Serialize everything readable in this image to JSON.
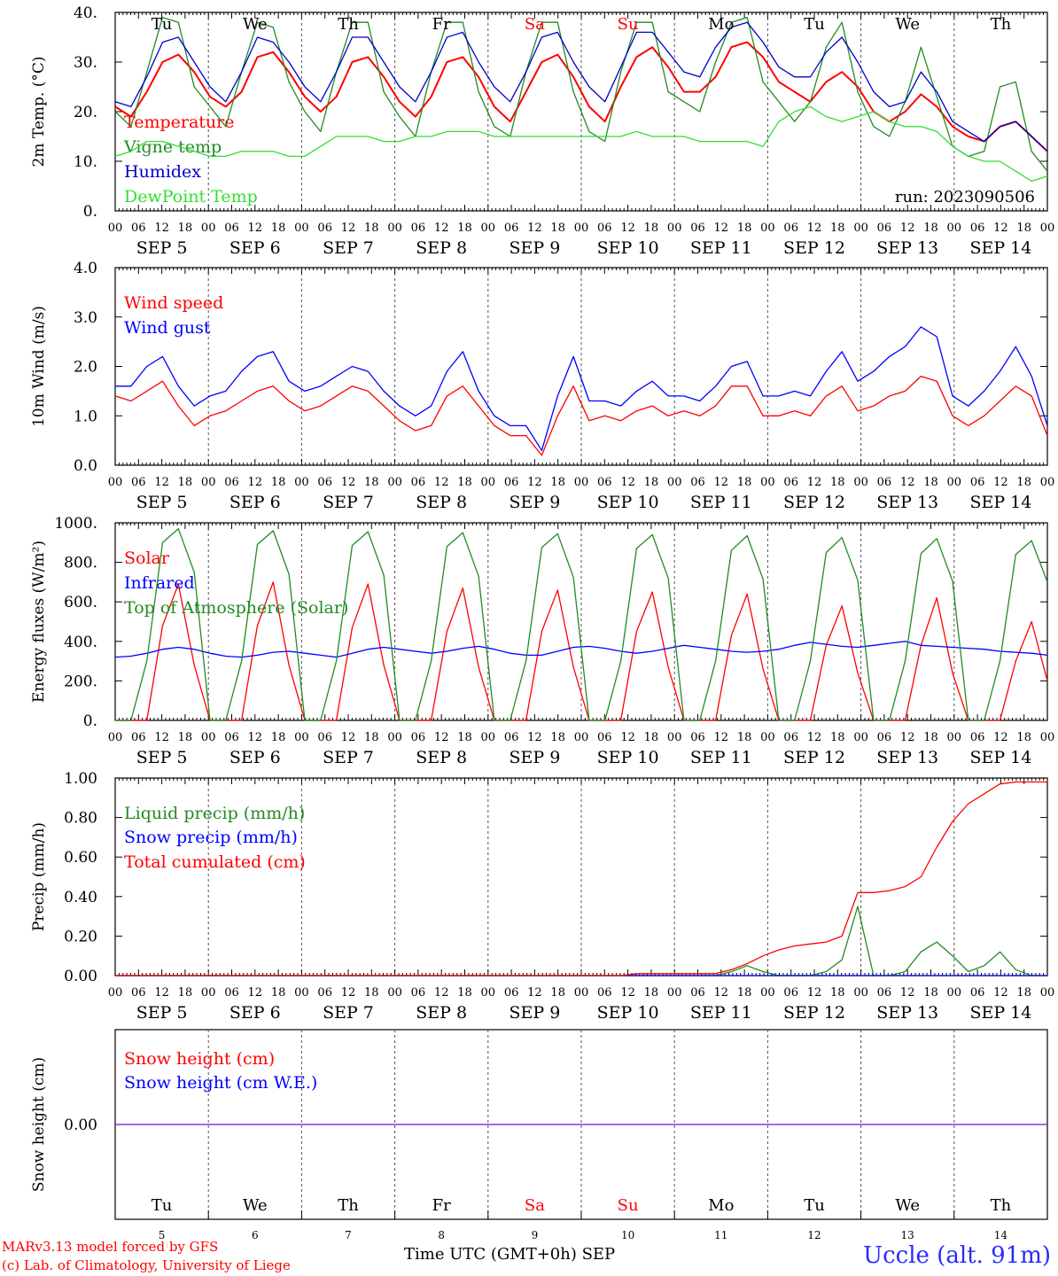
{
  "chart_data": [
    {
      "type": "line",
      "ylabel": "2m Temp. (°C)",
      "ylim": [
        0,
        40
      ],
      "yticks": [
        "0.",
        "10.",
        "20.",
        "30.",
        "40."
      ],
      "annotation": "run: 2023090506",
      "series": [
        {
          "name": "Temperature",
          "color": "#ff0000",
          "values": [
            21,
            19,
            24,
            30,
            31.5,
            28,
            23,
            21,
            24,
            31,
            32,
            28,
            23,
            20,
            23,
            30,
            31,
            27,
            22,
            19,
            23,
            30,
            31,
            27,
            21,
            18,
            24,
            30,
            31.5,
            27,
            21,
            18,
            25,
            31,
            33,
            29,
            24,
            24,
            27,
            33,
            34,
            31,
            26,
            24,
            22,
            26,
            28,
            25,
            20,
            18,
            20,
            23.5,
            21,
            17,
            15,
            14,
            17,
            18,
            15,
            12
          ]
        },
        {
          "name": "Vigne temp",
          "color": "#228b22",
          "values": [
            20,
            17,
            28,
            39,
            38,
            25,
            21,
            17,
            28,
            38,
            37,
            26,
            20,
            16,
            28,
            38,
            38,
            24,
            19,
            15,
            28,
            38,
            38,
            24,
            17,
            15,
            28,
            38,
            38,
            24,
            16,
            14,
            28,
            38,
            38,
            24,
            22,
            20,
            30,
            38,
            39,
            26,
            22,
            18,
            22,
            33,
            38,
            24,
            17,
            15,
            22,
            33,
            23,
            13,
            11,
            12,
            25,
            26,
            12,
            8
          ]
        },
        {
          "name": "Humidex",
          "color": "#0000cc",
          "values": [
            22,
            21,
            27,
            34,
            35,
            30,
            25,
            22,
            28,
            35,
            34,
            30,
            25,
            22,
            28,
            35,
            35,
            30,
            25,
            22,
            28,
            35,
            36,
            30,
            25,
            22,
            28,
            35,
            36,
            30,
            25,
            22,
            29,
            36,
            36,
            32,
            28,
            27,
            33,
            37,
            38,
            34,
            29,
            27,
            27,
            32,
            35,
            30,
            24,
            21,
            22,
            28,
            24,
            18,
            16,
            14,
            17,
            18,
            15,
            12
          ]
        },
        {
          "name": "DewPoint Temp",
          "color": "#33dd33",
          "values": [
            11,
            12,
            14,
            14,
            13,
            12,
            11,
            11,
            12,
            12,
            12,
            11,
            11,
            13,
            15,
            15,
            15,
            14,
            14,
            15,
            15,
            16,
            16,
            16,
            15,
            15,
            15,
            15,
            15,
            15,
            15,
            15,
            15,
            16,
            15,
            15,
            15,
            14,
            14,
            14,
            14,
            13,
            18,
            20,
            21,
            19,
            18,
            19,
            20,
            18,
            17,
            17,
            16,
            13,
            11,
            10,
            10,
            8,
            6,
            7
          ]
        }
      ]
    },
    {
      "type": "line",
      "ylabel": "10m Wind (m/s)",
      "ylim": [
        0,
        4
      ],
      "yticks": [
        "0.0",
        "1.0",
        "2.0",
        "3.0",
        "4.0"
      ],
      "series": [
        {
          "name": "Wind speed",
          "color": "#ff0000",
          "values": [
            1.4,
            1.3,
            1.5,
            1.7,
            1.2,
            0.8,
            1.0,
            1.1,
            1.3,
            1.5,
            1.6,
            1.3,
            1.1,
            1.2,
            1.4,
            1.6,
            1.5,
            1.2,
            0.9,
            0.7,
            0.8,
            1.4,
            1.6,
            1.2,
            0.8,
            0.6,
            0.6,
            0.2,
            1.0,
            1.6,
            0.9,
            1.0,
            0.9,
            1.1,
            1.2,
            1.0,
            1.1,
            1.0,
            1.2,
            1.6,
            1.6,
            1.0,
            1.0,
            1.1,
            1.0,
            1.4,
            1.6,
            1.1,
            1.2,
            1.4,
            1.5,
            1.8,
            1.7,
            1.0,
            0.8,
            1.0,
            1.3,
            1.6,
            1.4,
            0.6
          ]
        },
        {
          "name": "Wind gust",
          "color": "#0000ff",
          "values": [
            1.6,
            1.6,
            2.0,
            2.2,
            1.6,
            1.2,
            1.4,
            1.5,
            1.9,
            2.2,
            2.3,
            1.7,
            1.5,
            1.6,
            1.8,
            2.0,
            1.9,
            1.5,
            1.2,
            1.0,
            1.2,
            1.9,
            2.3,
            1.5,
            1.0,
            0.8,
            0.8,
            0.3,
            1.4,
            2.2,
            1.3,
            1.3,
            1.2,
            1.5,
            1.7,
            1.4,
            1.4,
            1.3,
            1.6,
            2.0,
            2.1,
            1.4,
            1.4,
            1.5,
            1.4,
            1.9,
            2.3,
            1.7,
            1.9,
            2.2,
            2.4,
            2.8,
            2.6,
            1.4,
            1.2,
            1.5,
            1.9,
            2.4,
            1.8,
            0.8
          ]
        }
      ]
    },
    {
      "type": "line",
      "ylabel": "Energy fluxes (W/m²)",
      "ylim": [
        0,
        1000
      ],
      "yticks": [
        "0.",
        "200.",
        "400.",
        "600.",
        "800.",
        "1000."
      ],
      "series": [
        {
          "name": "Solar",
          "color": "#ff0000",
          "values": [
            0,
            0,
            0,
            480,
            690,
            280,
            0,
            0,
            0,
            480,
            700,
            280,
            0,
            0,
            0,
            470,
            690,
            280,
            0,
            0,
            0,
            450,
            670,
            270,
            0,
            0,
            0,
            450,
            660,
            270,
            0,
            0,
            0,
            450,
            650,
            270,
            0,
            0,
            0,
            430,
            640,
            260,
            0,
            0,
            0,
            380,
            580,
            240,
            0,
            0,
            0,
            380,
            620,
            240,
            0,
            0,
            0,
            300,
            500,
            200
          ]
        },
        {
          "name": "Infrared",
          "color": "#0000ff",
          "values": [
            320,
            325,
            340,
            360,
            370,
            360,
            340,
            325,
            320,
            330,
            345,
            350,
            340,
            330,
            320,
            340,
            360,
            370,
            360,
            350,
            340,
            350,
            365,
            375,
            360,
            340,
            330,
            330,
            350,
            370,
            375,
            365,
            350,
            340,
            350,
            365,
            380,
            370,
            360,
            350,
            345,
            350,
            360,
            380,
            395,
            385,
            375,
            370,
            380,
            390,
            400,
            380,
            375,
            370,
            365,
            360,
            350,
            345,
            340,
            330
          ]
        },
        {
          "name": "Top of Atmosphere (Solar)",
          "color": "#228b22",
          "values": [
            0,
            0,
            300,
            900,
            970,
            750,
            0,
            0,
            300,
            890,
            960,
            740,
            0,
            0,
            300,
            885,
            955,
            735,
            0,
            0,
            300,
            880,
            950,
            730,
            0,
            0,
            300,
            875,
            945,
            725,
            0,
            0,
            300,
            870,
            940,
            720,
            0,
            0,
            300,
            860,
            935,
            715,
            0,
            0,
            300,
            850,
            925,
            710,
            0,
            0,
            300,
            845,
            920,
            705,
            0,
            0,
            300,
            840,
            910,
            700
          ]
        }
      ]
    },
    {
      "type": "line",
      "ylabel": "Precip (mm/h)",
      "ylim": [
        0,
        1
      ],
      "yticks": [
        "0.00",
        "0.20",
        "0.40",
        "0.60",
        "0.80",
        "1.00"
      ],
      "series": [
        {
          "name": "Liquid precip (mm/h)",
          "color": "#228b22",
          "values": [
            0,
            0,
            0,
            0,
            0,
            0,
            0,
            0,
            0,
            0,
            0,
            0,
            0,
            0,
            0,
            0,
            0,
            0,
            0,
            0,
            0,
            0,
            0,
            0,
            0,
            0,
            0,
            0,
            0,
            0,
            0,
            0,
            0,
            0,
            0,
            0,
            0,
            0,
            0,
            0.02,
            0.05,
            0.02,
            0,
            0,
            0,
            0.02,
            0.08,
            0.35,
            0,
            0,
            0.02,
            0.12,
            0.17,
            0.1,
            0.02,
            0.05,
            0.12,
            0.03,
            0,
            0
          ]
        },
        {
          "name": "Snow precip (mm/h)",
          "color": "#0000ff",
          "values": [
            0,
            0,
            0,
            0,
            0,
            0,
            0,
            0,
            0,
            0,
            0,
            0,
            0,
            0,
            0,
            0,
            0,
            0,
            0,
            0,
            0,
            0,
            0,
            0,
            0,
            0,
            0,
            0,
            0,
            0,
            0,
            0,
            0,
            0,
            0,
            0,
            0,
            0,
            0,
            0,
            0,
            0,
            0,
            0,
            0,
            0,
            0,
            0,
            0,
            0,
            0,
            0,
            0,
            0,
            0,
            0,
            0,
            0,
            0,
            0
          ]
        },
        {
          "name": "Total cumulated (cm)",
          "color": "#ff0000",
          "values": [
            0,
            0,
            0,
            0,
            0,
            0,
            0,
            0,
            0,
            0,
            0,
            0,
            0,
            0,
            0,
            0,
            0,
            0,
            0,
            0,
            0,
            0,
            0,
            0,
            0,
            0,
            0,
            0,
            0,
            0,
            0,
            0,
            0,
            0.01,
            0.01,
            0.01,
            0.01,
            0.01,
            0.01,
            0.03,
            0.06,
            0.1,
            0.13,
            0.15,
            0.16,
            0.17,
            0.2,
            0.42,
            0.42,
            0.43,
            0.45,
            0.5,
            0.65,
            0.78,
            0.87,
            0.92,
            0.97,
            0.98,
            0.98,
            0.98
          ]
        }
      ]
    },
    {
      "type": "line",
      "ylabel": "Snow height (cm)",
      "ylim": [
        -1,
        1
      ],
      "yticks": [
        "0.00"
      ],
      "series": [
        {
          "name": "Snow height (cm)",
          "color": "#ff0000",
          "values": [
            0,
            0
          ]
        },
        {
          "name": "Snow height (cm W.E.)",
          "color": "#0000ff",
          "values": [
            0,
            0
          ]
        }
      ]
    }
  ],
  "days": [
    {
      "abbr": "Tu",
      "date": "SEP  5",
      "num": "5",
      "weekend": false
    },
    {
      "abbr": "We",
      "date": "SEP  6",
      "num": "6",
      "weekend": false
    },
    {
      "abbr": "Th",
      "date": "SEP  7",
      "num": "7",
      "weekend": false
    },
    {
      "abbr": "Fr",
      "date": "SEP  8",
      "num": "8",
      "weekend": false
    },
    {
      "abbr": "Sa",
      "date": "SEP  9",
      "num": "9",
      "weekend": true
    },
    {
      "abbr": "Su",
      "date": "SEP 10",
      "num": "10",
      "weekend": true
    },
    {
      "abbr": "Mo",
      "date": "SEP 11",
      "num": "11",
      "weekend": false
    },
    {
      "abbr": "Tu",
      "date": "SEP 12",
      "num": "12",
      "weekend": false
    },
    {
      "abbr": "We",
      "date": "SEP 13",
      "num": "13",
      "weekend": false
    },
    {
      "abbr": "Th",
      "date": "SEP 14",
      "num": "14",
      "weekend": false
    }
  ],
  "hour_labels": [
    "00",
    "06",
    "12",
    "18"
  ],
  "final_hour_label": "00",
  "colors": {
    "weekday": "#000000",
    "weekend": "#ff0000"
  },
  "footer": {
    "credit_line1": "MARv3.13 model forced by GFS",
    "credit_line2": "(c) Lab. of Climatology, University of Liege",
    "x_title": "Time UTC (GMT+0h) SEP",
    "station": "Uccle (alt. 91m)"
  }
}
